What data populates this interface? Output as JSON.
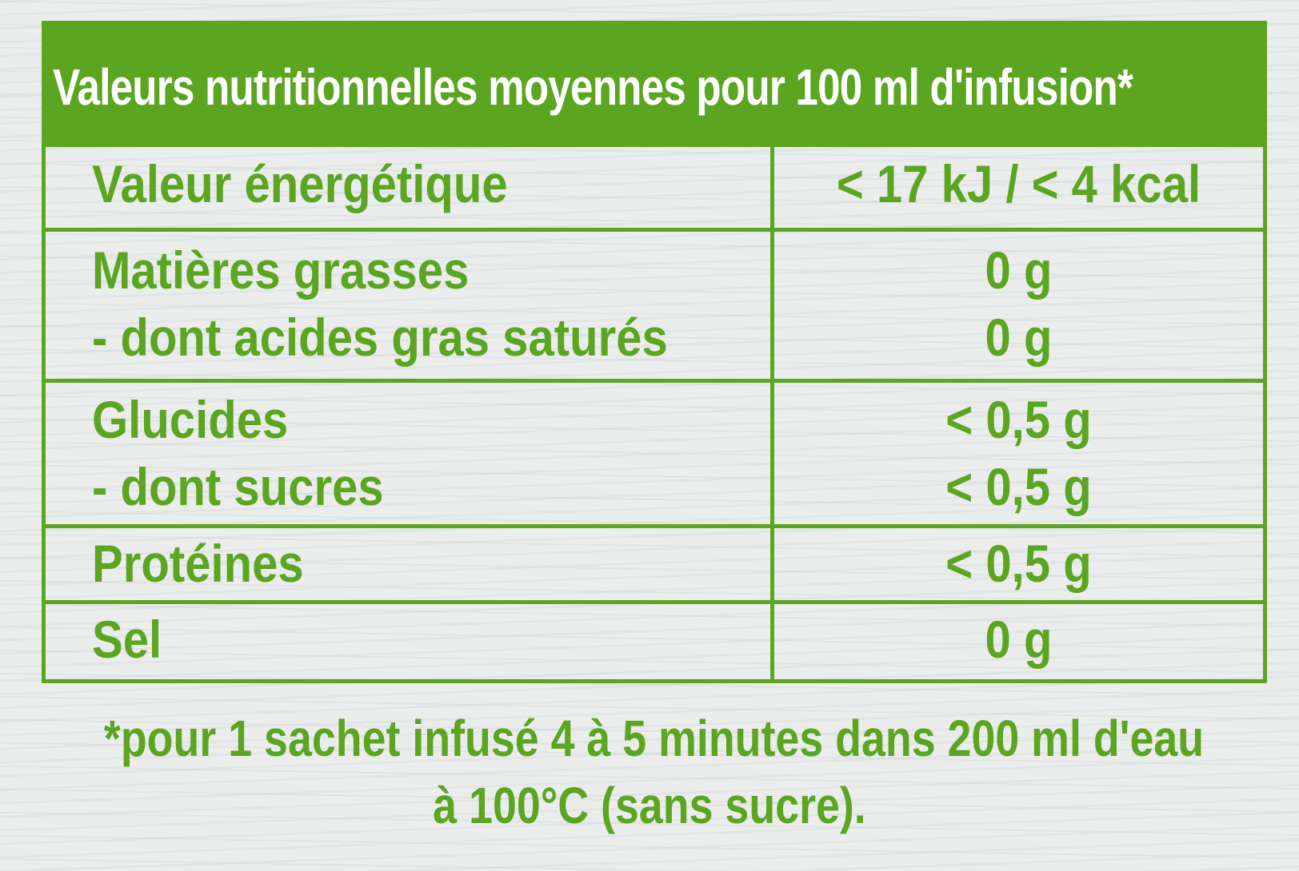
{
  "title": "Valeurs nutritionnelles moyennes pour 100 ml d'infusion*",
  "rows": [
    {
      "labels": [
        "Valeur énergétique"
      ],
      "values": [
        "< 17 kJ / < 4 kcal"
      ]
    },
    {
      "labels": [
        "Matières grasses",
        "- dont acides gras saturés"
      ],
      "values": [
        "0 g",
        "0 g"
      ]
    },
    {
      "labels": [
        "Glucides",
        "- dont sucres"
      ],
      "values": [
        "< 0,5 g",
        "< 0,5 g"
      ]
    },
    {
      "labels": [
        "Protéines"
      ],
      "values": [
        "< 0,5 g"
      ]
    },
    {
      "labels": [
        "Sel"
      ],
      "values": [
        "0 g"
      ]
    }
  ],
  "footnote": {
    "line1": "*pour 1 sachet infusé 4 à 5 minutes dans 200 ml d'eau",
    "line2": "à 100°C (sans sucre)."
  },
  "colors": {
    "accent": "#5ba521",
    "header_text": "#ffffff",
    "background": "#ebeded"
  }
}
